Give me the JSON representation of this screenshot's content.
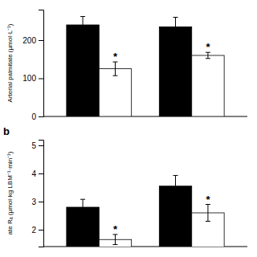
{
  "chart_data": [
    {
      "type": "bar",
      "ylabel": "Arterial palmitate (µmol·L⁻¹)",
      "categories": [
        null,
        null
      ],
      "series": [
        {
          "color": "#000000",
          "values": [
            240,
            235
          ],
          "errors": [
            22,
            25
          ]
        },
        {
          "color": "#ffffff",
          "values": [
            125,
            160
          ],
          "errors": [
            18,
            8
          ]
        }
      ],
      "ylim": [
        0,
        280
      ],
      "yticks": [
        0,
        100,
        200
      ],
      "tick_labels": "y",
      "annotations": [
        {
          "text": "*",
          "series": 1,
          "index": 0
        },
        {
          "text": "*",
          "series": 1,
          "index": 1
        }
      ]
    },
    {
      "type": "bar",
      "title": "b",
      "ylabel": "ate Rₐ (µmol·kg LBM⁻¹·min⁻¹)",
      "categories": [
        null,
        null
      ],
      "series": [
        {
          "color": "#000000",
          "values": [
            2.8,
            3.55
          ],
          "errors": [
            0.28,
            0.38
          ]
        },
        {
          "color": "#ffffff",
          "values": [
            1.65,
            2.6
          ],
          "errors": [
            0.18,
            0.3
          ]
        }
      ],
      "ylim": [
        1.4,
        5.2
      ],
      "yticks": [
        2,
        3,
        4,
        5
      ],
      "tick_labels": "y",
      "annotations": [
        {
          "text": "*",
          "series": 1,
          "index": 0
        },
        {
          "text": "*",
          "series": 1,
          "index": 1
        }
      ]
    }
  ]
}
